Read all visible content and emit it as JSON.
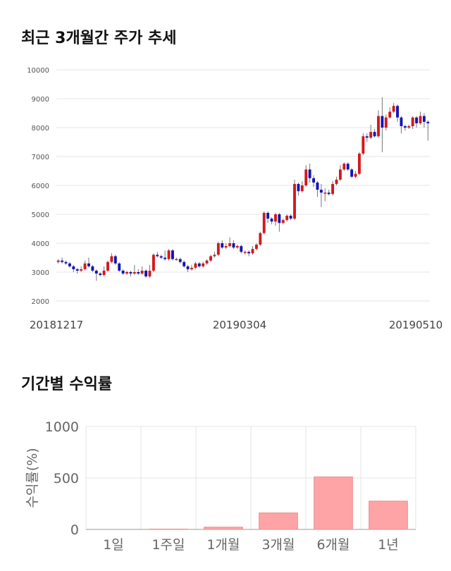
{
  "titles": {
    "price_trend": "최근 3개월간 주가 추세",
    "period_return": "기간별 수익률"
  },
  "colors": {
    "up": "#d3191c",
    "down": "#1414b4",
    "wick": "#777777",
    "bar": "#ffa4a6",
    "bar_stroke": "#e98b8d",
    "grid": "#e5e5e5"
  },
  "chart_data": [
    {
      "type": "candlestick",
      "title": "최근 3개월간 주가 추세",
      "yticks": [
        "10000",
        "9000",
        "8000",
        "7000",
        "6000",
        "5000",
        "4000",
        "3000",
        "2000"
      ],
      "ylim": [
        2000,
        10000
      ],
      "date_labels": [
        "20181217",
        "20190304",
        "20190510"
      ],
      "grid": true,
      "candles": [
        [
          3350,
          3400,
          3450,
          3300
        ],
        [
          3400,
          3350,
          3500,
          3300
        ],
        [
          3350,
          3300,
          3400,
          3250
        ],
        [
          3300,
          3200,
          3350,
          3150
        ],
        [
          3200,
          3100,
          3250,
          3000
        ],
        [
          3100,
          3050,
          3150,
          2950
        ],
        [
          3050,
          3100,
          3200,
          3000
        ],
        [
          3100,
          3300,
          3400,
          3050
        ],
        [
          3300,
          3200,
          3500,
          3150
        ],
        [
          3200,
          3050,
          3250,
          3000
        ],
        [
          3050,
          2950,
          3100,
          2700
        ],
        [
          2950,
          2900,
          3000,
          2850
        ],
        [
          2900,
          3050,
          3200,
          2850
        ],
        [
          3050,
          3350,
          3400,
          3000
        ],
        [
          3350,
          3550,
          3650,
          3300
        ],
        [
          3550,
          3300,
          3600,
          3250
        ],
        [
          3300,
          3050,
          3350,
          3000
        ],
        [
          3050,
          2950,
          3100,
          2900
        ],
        [
          2950,
          3000,
          3050,
          2900
        ],
        [
          3000,
          2950,
          3050,
          2850
        ],
        [
          2950,
          3000,
          3250,
          2900
        ],
        [
          3000,
          2950,
          3100,
          2900
        ],
        [
          2950,
          3050,
          3200,
          2900
        ],
        [
          3050,
          2850,
          3100,
          2800
        ],
        [
          2850,
          3050,
          3250,
          2800
        ],
        [
          3050,
          3600,
          3650,
          3000
        ],
        [
          3600,
          3550,
          3700,
          3500
        ],
        [
          3550,
          3500,
          3600,
          3450
        ],
        [
          3500,
          3450,
          3750,
          3400
        ],
        [
          3450,
          3750,
          3800,
          3400
        ],
        [
          3750,
          3450,
          3800,
          3400
        ],
        [
          3450,
          3450,
          3500,
          3400
        ],
        [
          3450,
          3350,
          3500,
          3300
        ],
        [
          3350,
          3200,
          3400,
          3150
        ],
        [
          3200,
          3100,
          3250,
          3000
        ],
        [
          3100,
          3150,
          3250,
          3050
        ],
        [
          3150,
          3300,
          3350,
          3100
        ],
        [
          3300,
          3200,
          3350,
          3150
        ],
        [
          3200,
          3300,
          3350,
          3150
        ],
        [
          3300,
          3400,
          3450,
          3250
        ],
        [
          3400,
          3550,
          3600,
          3350
        ],
        [
          3550,
          3600,
          3700,
          3500
        ],
        [
          3600,
          4000,
          4050,
          3550
        ],
        [
          4000,
          3850,
          4100,
          3800
        ],
        [
          3850,
          3900,
          4000,
          3800
        ],
        [
          3900,
          4000,
          4200,
          3850
        ],
        [
          4000,
          3850,
          4100,
          3800
        ],
        [
          3850,
          3900,
          3950,
          3800
        ],
        [
          3900,
          3700,
          3950,
          3650
        ],
        [
          3700,
          3700,
          3750,
          3600
        ],
        [
          3700,
          3650,
          3750,
          3550
        ],
        [
          3650,
          3800,
          3900,
          3600
        ],
        [
          3800,
          3950,
          4000,
          3750
        ],
        [
          3950,
          4350,
          4400,
          3900
        ],
        [
          4350,
          5050,
          5100,
          4300
        ],
        [
          5050,
          4850,
          5100,
          4700
        ],
        [
          4850,
          4750,
          4900,
          4650
        ],
        [
          4750,
          5000,
          5050,
          4600
        ],
        [
          5000,
          4700,
          5050,
          4400
        ],
        [
          4700,
          4800,
          4850,
          4650
        ],
        [
          4800,
          4950,
          5000,
          4750
        ],
        [
          4950,
          4850,
          5000,
          4800
        ],
        [
          4850,
          6050,
          6200,
          4800
        ],
        [
          6050,
          5800,
          6100,
          5650
        ],
        [
          5800,
          6000,
          6150,
          5750
        ],
        [
          6000,
          6550,
          6700,
          5950
        ],
        [
          6550,
          6250,
          6750,
          6100
        ],
        [
          6250,
          6100,
          6350,
          5950
        ],
        [
          6100,
          5850,
          6150,
          5600
        ],
        [
          5850,
          5750,
          6050,
          5250
        ],
        [
          5750,
          5750,
          5900,
          5450
        ],
        [
          5750,
          5700,
          5850,
          5650
        ],
        [
          5700,
          6050,
          6150,
          5650
        ],
        [
          6050,
          6200,
          6300,
          6000
        ],
        [
          6200,
          6550,
          6700,
          6150
        ],
        [
          6550,
          6750,
          6800,
          6500
        ],
        [
          6750,
          6550,
          6800,
          6500
        ],
        [
          6550,
          6300,
          6600,
          6250
        ],
        [
          6300,
          6400,
          6500,
          6250
        ],
        [
          6400,
          7100,
          7150,
          6350
        ],
        [
          7100,
          7700,
          7800,
          7050
        ],
        [
          7700,
          7650,
          7800,
          7500
        ],
        [
          7650,
          7850,
          8100,
          7600
        ],
        [
          7850,
          7700,
          7950,
          7650
        ],
        [
          7700,
          8400,
          8600,
          7650
        ],
        [
          8400,
          8000,
          9050,
          7150
        ],
        [
          8000,
          8350,
          8450,
          7900
        ],
        [
          8350,
          8550,
          8700,
          8300
        ],
        [
          8550,
          8750,
          8850,
          8500
        ],
        [
          8750,
          8350,
          8800,
          8200
        ],
        [
          8350,
          8050,
          8400,
          7800
        ],
        [
          8050,
          8000,
          8100,
          7900
        ],
        [
          8000,
          8050,
          8100,
          7950
        ],
        [
          8050,
          8350,
          8400,
          7950
        ],
        [
          8350,
          8150,
          8400,
          8000
        ],
        [
          8150,
          8400,
          8550,
          8100
        ],
        [
          8400,
          8200,
          8500,
          8000
        ],
        [
          8200,
          8150,
          8250,
          7550
        ]
      ]
    },
    {
      "type": "bar",
      "title": "기간별 수익률",
      "ylabel": "수익률(%)",
      "categories": [
        "1일",
        "1주일",
        "1개월",
        "3개월",
        "6개월",
        "1년"
      ],
      "values": [
        0,
        3,
        22,
        160,
        510,
        275
      ],
      "yticks": [
        "1000",
        "500",
        "0"
      ],
      "ylim": [
        0,
        1000
      ],
      "grid": true
    }
  ]
}
